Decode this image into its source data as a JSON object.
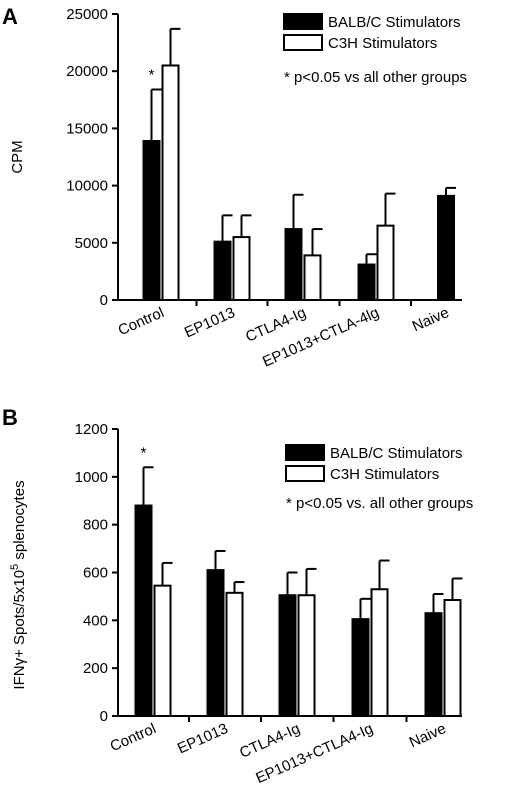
{
  "colors": {
    "balbc": "#000000",
    "c3h": "#ffffff",
    "stroke": "#000000"
  },
  "chart_data": [
    {
      "type": "bar",
      "panel": "A",
      "ylabel": "CPM",
      "ylim": [
        0,
        25000
      ],
      "yticks": [
        0,
        5000,
        10000,
        15000,
        20000,
        25000
      ],
      "categories": [
        "Control",
        "EP1013",
        "CTLA4-Ig",
        "EP1013+CTLA-4lg",
        "Naive"
      ],
      "series": [
        {
          "name": "BALB/C Stimulators",
          "color": "#000000",
          "values": [
            13900,
            5100,
            6200,
            3100,
            9100
          ],
          "errors": [
            4500,
            2300,
            3000,
            900,
            700
          ]
        },
        {
          "name": "C3H Stimulators",
          "color": "#ffffff",
          "values": [
            20500,
            5500,
            3900,
            6500,
            null
          ],
          "errors": [
            3200,
            1900,
            2300,
            2800,
            null
          ]
        }
      ],
      "annotations": [
        {
          "text": "*",
          "category": 0,
          "series": 0
        }
      ],
      "note": "* p<0.05 vs all other groups",
      "legend_position": "top-right"
    },
    {
      "type": "bar",
      "panel": "B",
      "ylabel": "IFNγ+ Spots/5x10⁵ splenocytes",
      "ylim": [
        0,
        1200
      ],
      "yticks": [
        0,
        200,
        400,
        600,
        800,
        1000,
        1200
      ],
      "categories": [
        "Control",
        "EP1013",
        "CTLA4-Ig",
        "EP1013+CTLA4-Ig",
        "Naive"
      ],
      "series": [
        {
          "name": "BALB/C Stimulators",
          "color": "#000000",
          "values": [
            880,
            610,
            505,
            405,
            430
          ],
          "errors": [
            160,
            80,
            95,
            85,
            80
          ]
        },
        {
          "name": "C3H Stimulators",
          "color": "#ffffff",
          "values": [
            545,
            515,
            505,
            530,
            485
          ],
          "errors": [
            95,
            45,
            110,
            120,
            90
          ]
        }
      ],
      "annotations": [
        {
          "text": "*",
          "category": 0,
          "series": 0
        }
      ],
      "note": "* p<0.05 vs. all other groups",
      "legend_position": "top-right"
    }
  ]
}
